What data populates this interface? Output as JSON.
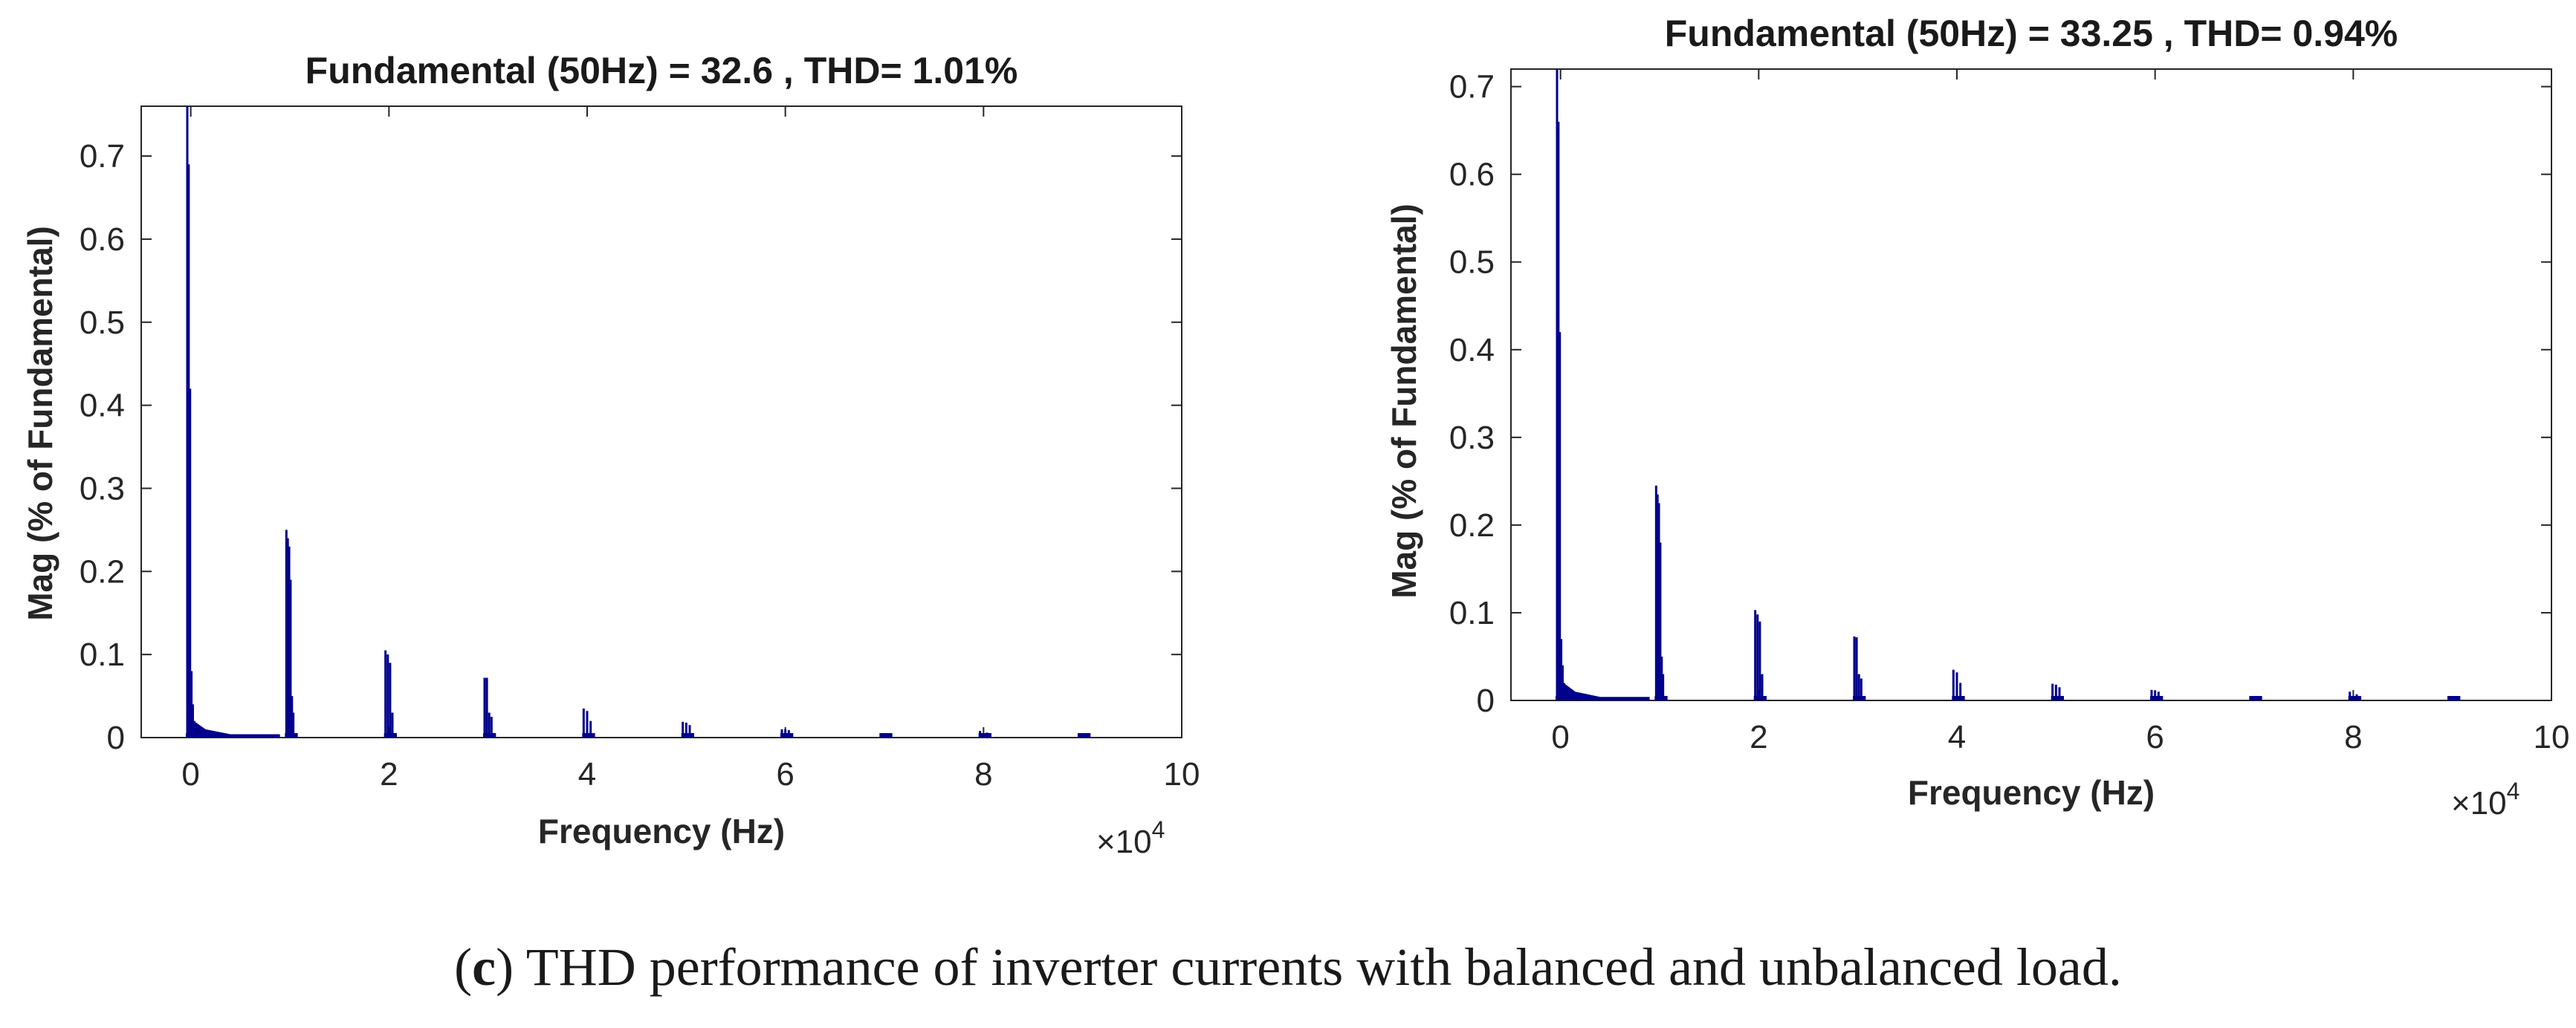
{
  "colors": {
    "spectrum": "#00008b",
    "axis": "#262626",
    "text": "#1a1a1a",
    "background": "#ffffff"
  },
  "caption": {
    "label": "c",
    "text": " THD performance of inverter currents with balanced and unbalanced load."
  },
  "chart_data": [
    {
      "type": "bar",
      "title": "Fundamental (50Hz) = 32.6 , THD= 1.01%",
      "xlabel": "Frequency (Hz)",
      "ylabel": "Mag (% of Fundamental)",
      "x_multiplier_label": "×10",
      "x_multiplier_exp": "4",
      "xlim": [
        -0.5,
        10
      ],
      "ylim": [
        0,
        0.76
      ],
      "xticks": [
        0,
        2,
        4,
        6,
        8,
        10
      ],
      "yticks": [
        0,
        0.1,
        0.2,
        0.3,
        0.4,
        0.5,
        0.6,
        0.7
      ],
      "grid": false,
      "legend": "none",
      "peaks": [
        {
          "x": 0.0,
          "values": [
            0.76,
            0.69,
            0.42,
            0.08,
            0.04,
            0.02
          ]
        },
        {
          "x": 1.0,
          "values": [
            0.25,
            0.24,
            0.23,
            0.19,
            0.05,
            0.03
          ]
        },
        {
          "x": 2.0,
          "values": [
            0.105,
            0.1,
            0.09,
            0.03
          ]
        },
        {
          "x": 3.0,
          "values": [
            0.072,
            0.072,
            0.03,
            0.025
          ]
        },
        {
          "x": 4.0,
          "values": [
            0.035,
            0.032,
            0.02
          ]
        },
        {
          "x": 5.0,
          "values": [
            0.019,
            0.018,
            0.015
          ]
        },
        {
          "x": 6.0,
          "values": [
            0.01,
            0.01,
            0.009
          ]
        },
        {
          "x": 7.0,
          "values": [
            0.004,
            0.004
          ]
        },
        {
          "x": 8.0,
          "values": [
            0.008,
            0.006
          ]
        },
        {
          "x": 9.0,
          "values": [
            0.003,
            0.003
          ]
        }
      ]
    },
    {
      "type": "bar",
      "title": "Fundamental (50Hz) = 33.25 , THD= 0.94%",
      "xlabel": "Frequency (Hz)",
      "ylabel": "Mag (% of Fundamental)",
      "x_multiplier_label": "×10",
      "x_multiplier_exp": "4",
      "xlim": [
        -0.5,
        10
      ],
      "ylim": [
        0,
        0.72
      ],
      "xticks": [
        0,
        2,
        4,
        6,
        8,
        10
      ],
      "yticks": [
        0,
        0.1,
        0.2,
        0.3,
        0.4,
        0.5,
        0.6,
        0.7
      ],
      "grid": false,
      "legend": "none",
      "peaks": [
        {
          "x": 0.0,
          "values": [
            0.72,
            0.66,
            0.42,
            0.07,
            0.04,
            0.02
          ]
        },
        {
          "x": 1.0,
          "values": [
            0.245,
            0.235,
            0.225,
            0.18,
            0.05,
            0.03
          ]
        },
        {
          "x": 2.0,
          "values": [
            0.103,
            0.098,
            0.09,
            0.03
          ]
        },
        {
          "x": 3.0,
          "values": [
            0.073,
            0.072,
            0.03,
            0.025
          ]
        },
        {
          "x": 4.0,
          "values": [
            0.035,
            0.032,
            0.02
          ]
        },
        {
          "x": 5.0,
          "values": [
            0.019,
            0.018,
            0.015
          ]
        },
        {
          "x": 6.0,
          "values": [
            0.012,
            0.011,
            0.01
          ]
        },
        {
          "x": 7.0,
          "values": [
            0.004,
            0.004
          ]
        },
        {
          "x": 8.0,
          "values": [
            0.01,
            0.007
          ]
        },
        {
          "x": 9.0,
          "values": [
            0.004,
            0.003
          ]
        }
      ]
    }
  ]
}
